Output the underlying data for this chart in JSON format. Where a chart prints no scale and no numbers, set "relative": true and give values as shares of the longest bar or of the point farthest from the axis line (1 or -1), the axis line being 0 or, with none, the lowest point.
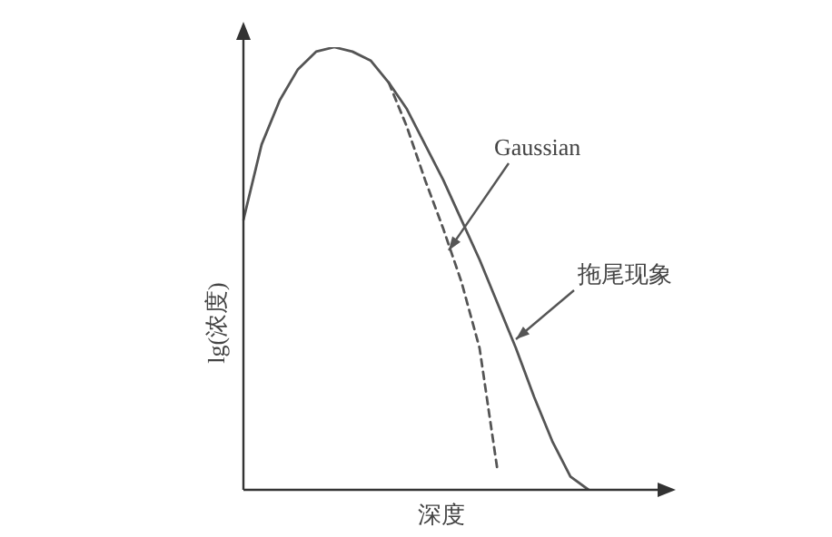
{
  "chart_data": {
    "type": "line",
    "xlabel": "深度",
    "ylabel": "lg(浓度)",
    "relative": true,
    "legend": false,
    "grid": false,
    "marker": "none",
    "categories": [
      null,
      null,
      null,
      null,
      null,
      null,
      null,
      null,
      null,
      null,
      null,
      null,
      null,
      null,
      null,
      null,
      null,
      null,
      null,
      null,
      null,
      null,
      null,
      null
    ],
    "series": [
      {
        "name": "拖尾现象",
        "color": "#555555",
        "line_style": "solid",
        "values": [
          0.61,
          0.78,
          0.88,
          0.95,
          0.99,
          1,
          0.99,
          0.97,
          0.92,
          0.86,
          0.78,
          0.7,
          0.61,
          0.52,
          0.42,
          0.32,
          0.21,
          0.11,
          0.03,
          0,
          null,
          null,
          null,
          null
        ]
      },
      {
        "name": "Gaussian",
        "color": "#555555",
        "line_style": "dashed",
        "values": [
          null,
          null,
          null,
          null,
          null,
          null,
          null,
          null,
          0.92,
          0.82,
          0.7,
          0.59,
          0.47,
          0.32,
          0.04,
          null,
          null,
          null,
          null,
          null,
          null,
          null,
          null,
          null
        ]
      }
    ]
  }
}
